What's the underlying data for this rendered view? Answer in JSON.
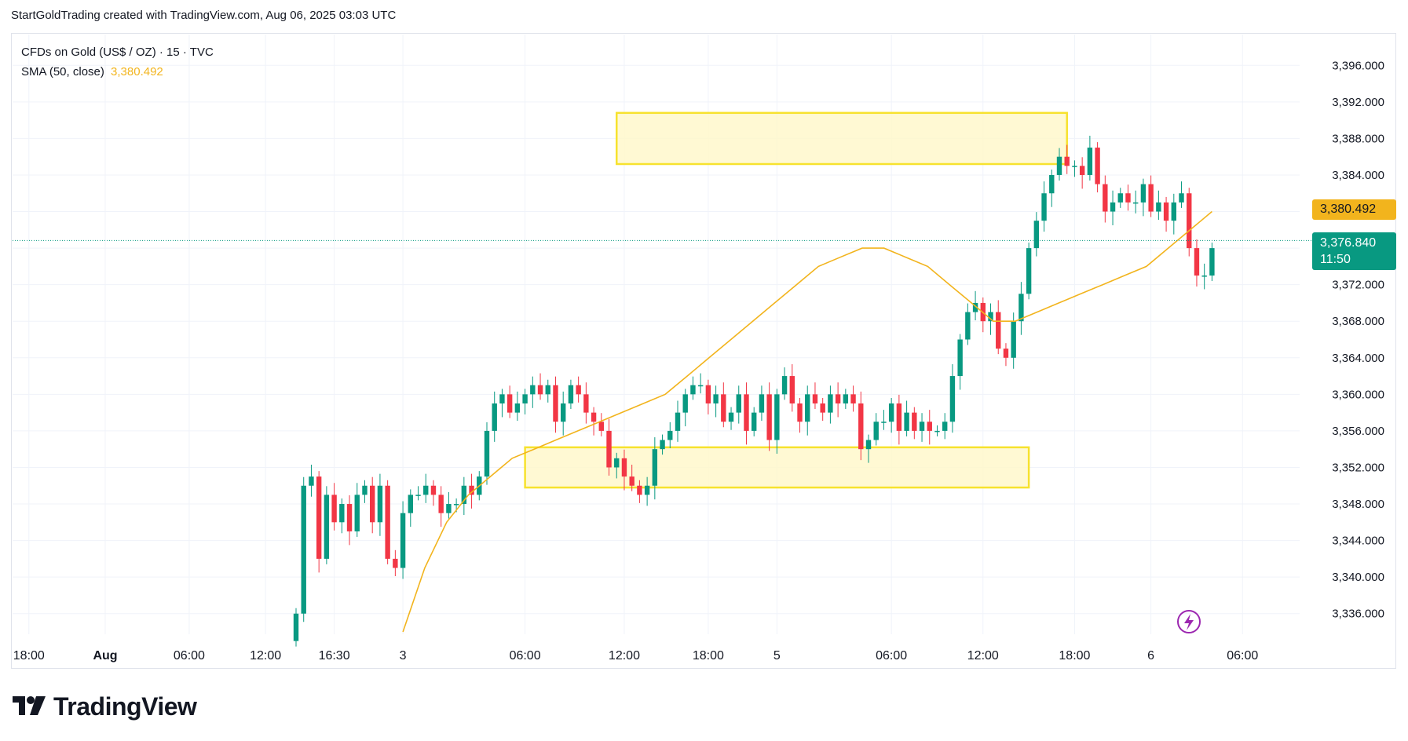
{
  "attribution": "StartGoldTrading created with TradingView.com, Aug 06, 2025 03:03 UTC",
  "legend": {
    "symbol": "CFDs on Gold (US$ / OZ) · 15 · TVC",
    "sma_label": "SMA (50, close)",
    "sma_value": "3,380.492"
  },
  "price_tags": {
    "sma": "3,380.492",
    "last": "3,376.840",
    "countdown": "11:50"
  },
  "logo": {
    "text": "TradingView",
    "icon": "tradingview-logo-icon"
  },
  "lightning_icon": "lightning-icon",
  "colors": {
    "up": "#089981",
    "down": "#f23645",
    "sma": "#f2b41d",
    "zone_fill": "#fff7c8",
    "zone_border": "#f7e22e",
    "last_line": "#089981"
  },
  "chart_data": {
    "type": "candlestick",
    "title": "CFDs on Gold (US$ / OZ) · 15 · TVC",
    "ylim": [
      3334,
      3398
    ],
    "y_ticks": [
      "3,336.000",
      "3,340.000",
      "3,344.000",
      "3,348.000",
      "3,352.000",
      "3,356.000",
      "3,360.000",
      "3,364.000",
      "3,368.000",
      "3,372.000",
      "3,376.000",
      "3,380.000",
      "3,384.000",
      "3,388.000",
      "3,392.000",
      "3,396.000"
    ],
    "y_tick_values": [
      3336,
      3340,
      3344,
      3348,
      3352,
      3356,
      3360,
      3364,
      3368,
      3372,
      3376,
      3380,
      3384,
      3388,
      3392,
      3396
    ],
    "x_ticks": [
      {
        "label": "18:00",
        "bar": -35
      },
      {
        "label": "Aug",
        "bar": -25
      },
      {
        "label": "06:00",
        "bar": -14
      },
      {
        "label": "12:00",
        "bar": -4
      },
      {
        "label": "16:30",
        "bar": 5
      },
      {
        "label": "3",
        "bar": 14
      },
      {
        "label": "06:00",
        "bar": 30
      },
      {
        "label": "12:00",
        "bar": 43
      },
      {
        "label": "18:00",
        "bar": 54
      },
      {
        "label": "5",
        "bar": 63
      },
      {
        "label": "06:00",
        "bar": 78
      },
      {
        "label": "12:00",
        "bar": 90
      },
      {
        "label": "18:00",
        "bar": 102
      },
      {
        "label": "6",
        "bar": 112
      },
      {
        "label": "06:00",
        "bar": 124
      }
    ],
    "closes": [
      3336,
      3350,
      3351,
      3342,
      3349,
      3346,
      3348,
      3345,
      3349,
      3350,
      3346,
      3350,
      3342,
      3341,
      3347,
      3349,
      3349,
      3350,
      3349,
      3347,
      3348,
      3348,
      3350,
      3349,
      3351,
      3356,
      3359,
      3360,
      3358,
      3359,
      3360,
      3361,
      3360,
      3361,
      3357,
      3359,
      3361,
      3360,
      3358,
      3357,
      3356,
      3352,
      3353,
      3351,
      3350,
      3349,
      3350,
      3354,
      3355,
      3356,
      3358,
      3360,
      3361,
      3361,
      3359,
      3360,
      3357,
      3358,
      3360,
      3356,
      3358,
      3360,
      3355,
      3360,
      3362,
      3359,
      3357,
      3360,
      3359,
      3358,
      3360,
      3359,
      3360,
      3359,
      3354,
      3355,
      3357,
      3357,
      3359,
      3356,
      3358,
      3356,
      3357,
      3356,
      3356,
      3357,
      3362,
      3366,
      3369,
      3370,
      3368,
      3369,
      3365,
      3364,
      3368,
      3371,
      3376,
      3379,
      3382,
      3384,
      3386,
      3385,
      3385,
      3384,
      3387,
      3383,
      3380,
      3381,
      3382,
      3381,
      3381,
      3383,
      3380,
      3381,
      3379,
      3381,
      3382,
      3376,
      3373,
      3373,
      3376
    ],
    "open_start": 3333,
    "sma50_start_bar": 14,
    "sma50_values": [
      3334,
      3341,
      3346,
      3349,
      3351,
      3353,
      3354,
      3355,
      3356,
      3357,
      3358,
      3359,
      3360,
      3362,
      3364,
      3366,
      3368,
      3370,
      3372,
      3374,
      3375,
      3376,
      3376,
      3375,
      3374,
      3372,
      3370,
      3368,
      3368,
      3369,
      3370,
      3371,
      3372,
      3373,
      3374,
      3376,
      3378,
      3380
    ],
    "last_price": 3376.84,
    "sma_last": 3380.492,
    "zones": [
      {
        "from_bar": 42,
        "to_bar": 101,
        "top": 3390.8,
        "bottom": 3385.2
      },
      {
        "from_bar": 30,
        "to_bar": 96,
        "top": 3354.2,
        "bottom": 3349.8
      }
    ]
  }
}
